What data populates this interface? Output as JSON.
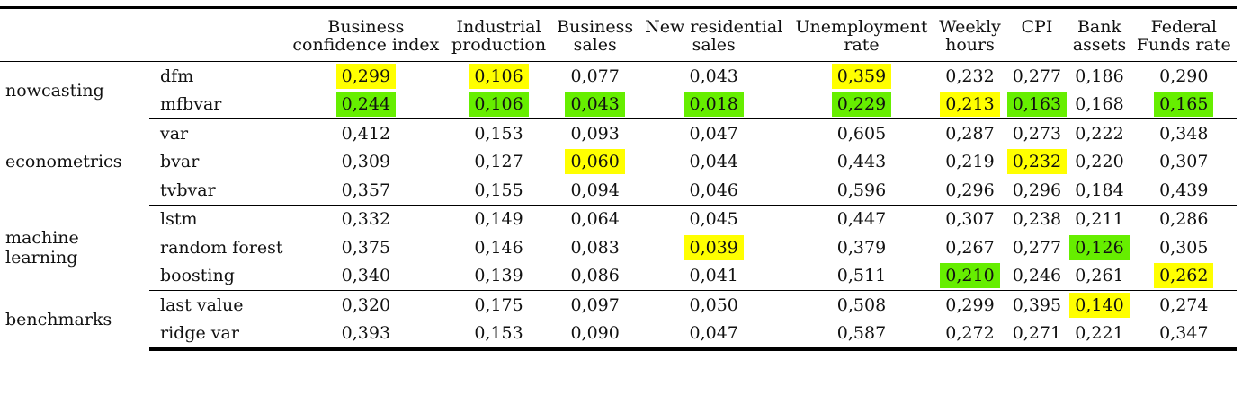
{
  "table": {
    "columns": [
      [
        "Business",
        "confidence index"
      ],
      [
        "Industrial",
        "production"
      ],
      [
        "Business",
        "sales"
      ],
      [
        "New residential",
        "sales"
      ],
      [
        "Unemployment",
        "rate"
      ],
      [
        "Weekly",
        "hours"
      ],
      [
        "CPI",
        ""
      ],
      [
        "Bank",
        "assets"
      ],
      [
        "Federal",
        "Funds rate"
      ]
    ],
    "groups": [
      {
        "name": "nowcasting",
        "rows": [
          {
            "model": "dfm",
            "values": [
              "0,299",
              "0,106",
              "0,077",
              "0,043",
              "0,359",
              "0,232",
              "0,277",
              "0,186",
              "0,290"
            ],
            "highlights": [
              "yellow",
              "yellow",
              "",
              "",
              "yellow",
              "",
              "",
              "",
              ""
            ]
          },
          {
            "model": "mfbvar",
            "values": [
              "0,244",
              "0,106",
              "0,043",
              "0,018",
              "0,229",
              "0,213",
              "0,163",
              "0,168",
              "0,165"
            ],
            "highlights": [
              "green",
              "green",
              "green",
              "green",
              "green",
              "yellow",
              "green",
              "",
              "green"
            ]
          }
        ]
      },
      {
        "name": "econometrics",
        "rows": [
          {
            "model": "var",
            "values": [
              "0,412",
              "0,153",
              "0,093",
              "0,047",
              "0,605",
              "0,287",
              "0,273",
              "0,222",
              "0,348"
            ],
            "highlights": [
              "",
              "",
              "",
              "",
              "",
              "",
              "",
              "",
              ""
            ]
          },
          {
            "model": "bvar",
            "values": [
              "0,309",
              "0,127",
              "0,060",
              "0,044",
              "0,443",
              "0,219",
              "0,232",
              "0,220",
              "0,307"
            ],
            "highlights": [
              "",
              "",
              "yellow",
              "",
              "",
              "",
              "yellow",
              "",
              ""
            ]
          },
          {
            "model": "tvbvar",
            "values": [
              "0,357",
              "0,155",
              "0,094",
              "0,046",
              "0,596",
              "0,296",
              "0,296",
              "0,184",
              "0,439"
            ],
            "highlights": [
              "",
              "",
              "",
              "",
              "",
              "",
              "",
              "",
              ""
            ]
          }
        ]
      },
      {
        "name": "machine learning",
        "rows": [
          {
            "model": "lstm",
            "values": [
              "0,332",
              "0,149",
              "0,064",
              "0,045",
              "0,447",
              "0,307",
              "0,238",
              "0,211",
              "0,286"
            ],
            "highlights": [
              "",
              "",
              "",
              "",
              "",
              "",
              "",
              "",
              ""
            ]
          },
          {
            "model": "random forest",
            "values": [
              "0,375",
              "0,146",
              "0,083",
              "0,039",
              "0,379",
              "0,267",
              "0,277",
              "0,126",
              "0,305"
            ],
            "highlights": [
              "",
              "",
              "",
              "yellow",
              "",
              "",
              "",
              "green",
              ""
            ]
          },
          {
            "model": "boosting",
            "values": [
              "0,340",
              "0,139",
              "0,086",
              "0,041",
              "0,511",
              "0,210",
              "0,246",
              "0,261",
              "0,262"
            ],
            "highlights": [
              "",
              "",
              "",
              "",
              "",
              "green",
              "",
              "",
              "yellow"
            ]
          }
        ]
      },
      {
        "name": "benchmarks",
        "rows": [
          {
            "model": "last value",
            "values": [
              "0,320",
              "0,175",
              "0,097",
              "0,050",
              "0,508",
              "0,299",
              "0,395",
              "0,140",
              "0,274"
            ],
            "highlights": [
              "",
              "",
              "",
              "",
              "",
              "",
              "",
              "yellow",
              ""
            ]
          },
          {
            "model": "ridge var",
            "values": [
              "0,393",
              "0,153",
              "0,090",
              "0,047",
              "0,587",
              "0,272",
              "0,271",
              "0,221",
              "0,347"
            ],
            "highlights": [
              "",
              "",
              "",
              "",
              "",
              "",
              "",
              "",
              ""
            ]
          }
        ]
      }
    ]
  },
  "colors": {
    "yellow": "#ffff00",
    "green": "#66ee00"
  }
}
